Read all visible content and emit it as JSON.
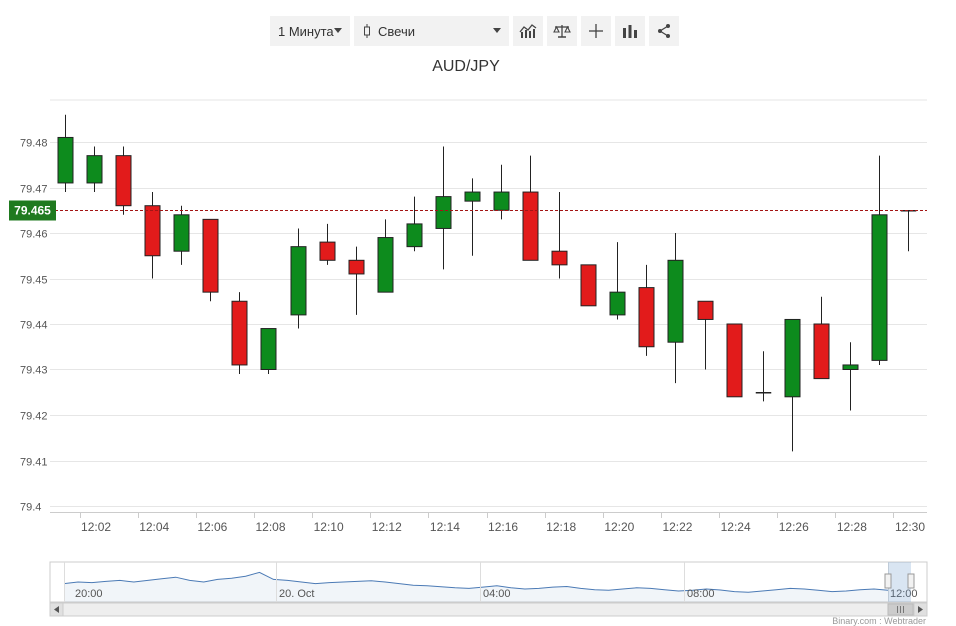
{
  "toolbar": {
    "timeframe": "1 Минута",
    "chart_type": "Свечи",
    "buttons": [
      "indicators-icon",
      "comparison-icon",
      "crosshair-icon",
      "bar-chart-icon",
      "share-icon"
    ]
  },
  "colors": {
    "up": "#0d8b1d",
    "down": "#e21b1b",
    "current_price": "#1f7a1f",
    "grid": "#e6e6e6",
    "navigator_line": "#4b7ab5"
  },
  "navigator": {
    "labels": [
      "20:00",
      "20. Oct",
      "04:00",
      "08:00",
      "12:00"
    ]
  },
  "credit": "Binary.com : Webtrader",
  "chart_data": {
    "type": "candlestick",
    "title": "AUD/JPY",
    "current_price": 79.465,
    "current_price_label": "79.465",
    "ylim": [
      79.4,
      79.487
    ],
    "y_ticks": [
      79.48,
      79.47,
      79.46,
      79.45,
      79.44,
      79.43,
      79.42,
      79.41,
      79.4
    ],
    "y_tick_labels": [
      "79.48",
      "79.47",
      "79.46",
      "79.45",
      "79.44",
      "79.43",
      "79.42",
      "79.41",
      "79.4"
    ],
    "x_ticks": [
      "12:02",
      "12:04",
      "12:06",
      "12:08",
      "12:10",
      "12:12",
      "12:14",
      "12:16",
      "12:18",
      "12:20",
      "12:22",
      "12:24",
      "12:26",
      "12:28",
      "12:30"
    ],
    "candles": [
      {
        "t": "12:01",
        "o": 79.471,
        "h": 79.486,
        "l": 79.469,
        "c": 79.481
      },
      {
        "t": "12:02",
        "o": 79.471,
        "h": 79.479,
        "l": 79.469,
        "c": 79.477
      },
      {
        "t": "12:03",
        "o": 79.477,
        "h": 79.479,
        "l": 79.464,
        "c": 79.466
      },
      {
        "t": "12:04",
        "o": 79.466,
        "h": 79.469,
        "l": 79.45,
        "c": 79.455
      },
      {
        "t": "12:05",
        "o": 79.456,
        "h": 79.466,
        "l": 79.453,
        "c": 79.464
      },
      {
        "t": "12:06",
        "o": 79.463,
        "h": 79.463,
        "l": 79.445,
        "c": 79.447
      },
      {
        "t": "12:07",
        "o": 79.445,
        "h": 79.447,
        "l": 79.429,
        "c": 79.431
      },
      {
        "t": "12:08",
        "o": 79.43,
        "h": 79.439,
        "l": 79.429,
        "c": 79.439
      },
      {
        "t": "12:09",
        "o": 79.442,
        "h": 79.461,
        "l": 79.439,
        "c": 79.457
      },
      {
        "t": "12:10",
        "o": 79.458,
        "h": 79.462,
        "l": 79.453,
        "c": 79.454
      },
      {
        "t": "12:11",
        "o": 79.454,
        "h": 79.457,
        "l": 79.442,
        "c": 79.451
      },
      {
        "t": "12:12",
        "o": 79.447,
        "h": 79.463,
        "l": 79.447,
        "c": 79.459
      },
      {
        "t": "12:13",
        "o": 79.457,
        "h": 79.468,
        "l": 79.456,
        "c": 79.462
      },
      {
        "t": "12:14",
        "o": 79.461,
        "h": 79.479,
        "l": 79.452,
        "c": 79.468
      },
      {
        "t": "12:15",
        "o": 79.467,
        "h": 79.472,
        "l": 79.455,
        "c": 79.469
      },
      {
        "t": "12:16",
        "o": 79.465,
        "h": 79.475,
        "l": 79.463,
        "c": 79.469
      },
      {
        "t": "12:17",
        "o": 79.469,
        "h": 79.477,
        "l": 79.454,
        "c": 79.454
      },
      {
        "t": "12:18",
        "o": 79.456,
        "h": 79.469,
        "l": 79.45,
        "c": 79.453
      },
      {
        "t": "12:19",
        "o": 79.453,
        "h": 79.453,
        "l": 79.444,
        "c": 79.444
      },
      {
        "t": "12:20",
        "o": 79.442,
        "h": 79.458,
        "l": 79.441,
        "c": 79.447
      },
      {
        "t": "12:21",
        "o": 79.448,
        "h": 79.453,
        "l": 79.433,
        "c": 79.435
      },
      {
        "t": "12:22",
        "o": 79.436,
        "h": 79.46,
        "l": 79.427,
        "c": 79.454
      },
      {
        "t": "12:23",
        "o": 79.445,
        "h": 79.445,
        "l": 79.43,
        "c": 79.441
      },
      {
        "t": "12:24",
        "o": 79.44,
        "h": 79.44,
        "l": 79.424,
        "c": 79.424
      },
      {
        "t": "12:25",
        "o": 79.425,
        "h": 79.434,
        "l": 79.423,
        "c": 79.425
      },
      {
        "t": "12:26",
        "o": 79.424,
        "h": 79.441,
        "l": 79.412,
        "c": 79.441
      },
      {
        "t": "12:27",
        "o": 79.44,
        "h": 79.446,
        "l": 79.428,
        "c": 79.428
      },
      {
        "t": "12:28",
        "o": 79.43,
        "h": 79.436,
        "l": 79.421,
        "c": 79.431
      },
      {
        "t": "12:29",
        "o": 79.432,
        "h": 79.477,
        "l": 79.431,
        "c": 79.464
      },
      {
        "t": "12:30",
        "o": 79.465,
        "h": 79.465,
        "l": 79.456,
        "c": 79.465
      }
    ]
  }
}
